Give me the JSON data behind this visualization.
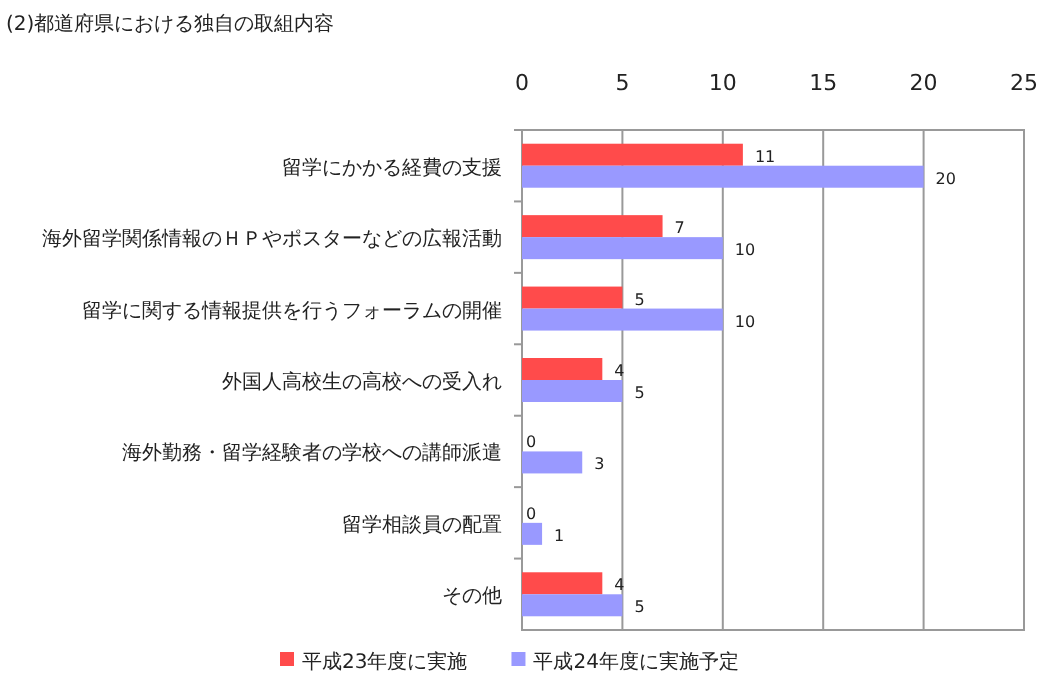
{
  "chart_data": {
    "type": "bar",
    "orientation": "horizontal",
    "title": "(2)都道府県における独自の取組内容",
    "categories": [
      "留学にかかる経費の支援",
      "海外留学関係情報のＨＰやポスターなどの広報活動",
      "留学に関する情報提供を行うフォーラムの開催",
      "外国人高校生の高校への受入れ",
      "海外勤務・留学経験者の学校への講師派遣",
      "留学相談員の配置",
      "その他"
    ],
    "series": [
      {
        "name": "平成23年度に実施",
        "color": "#ff4b4b",
        "values": [
          11,
          7,
          5,
          4,
          0,
          0,
          4
        ]
      },
      {
        "name": "平成24年度に実施予定",
        "color": "#9999ff",
        "values": [
          20,
          10,
          10,
          5,
          3,
          1,
          5
        ]
      }
    ],
    "xlim": [
      0,
      25
    ],
    "xticks": [
      0,
      5,
      10,
      15,
      20,
      25
    ],
    "grid": "x",
    "legend": "bottom",
    "data_labels": true
  }
}
